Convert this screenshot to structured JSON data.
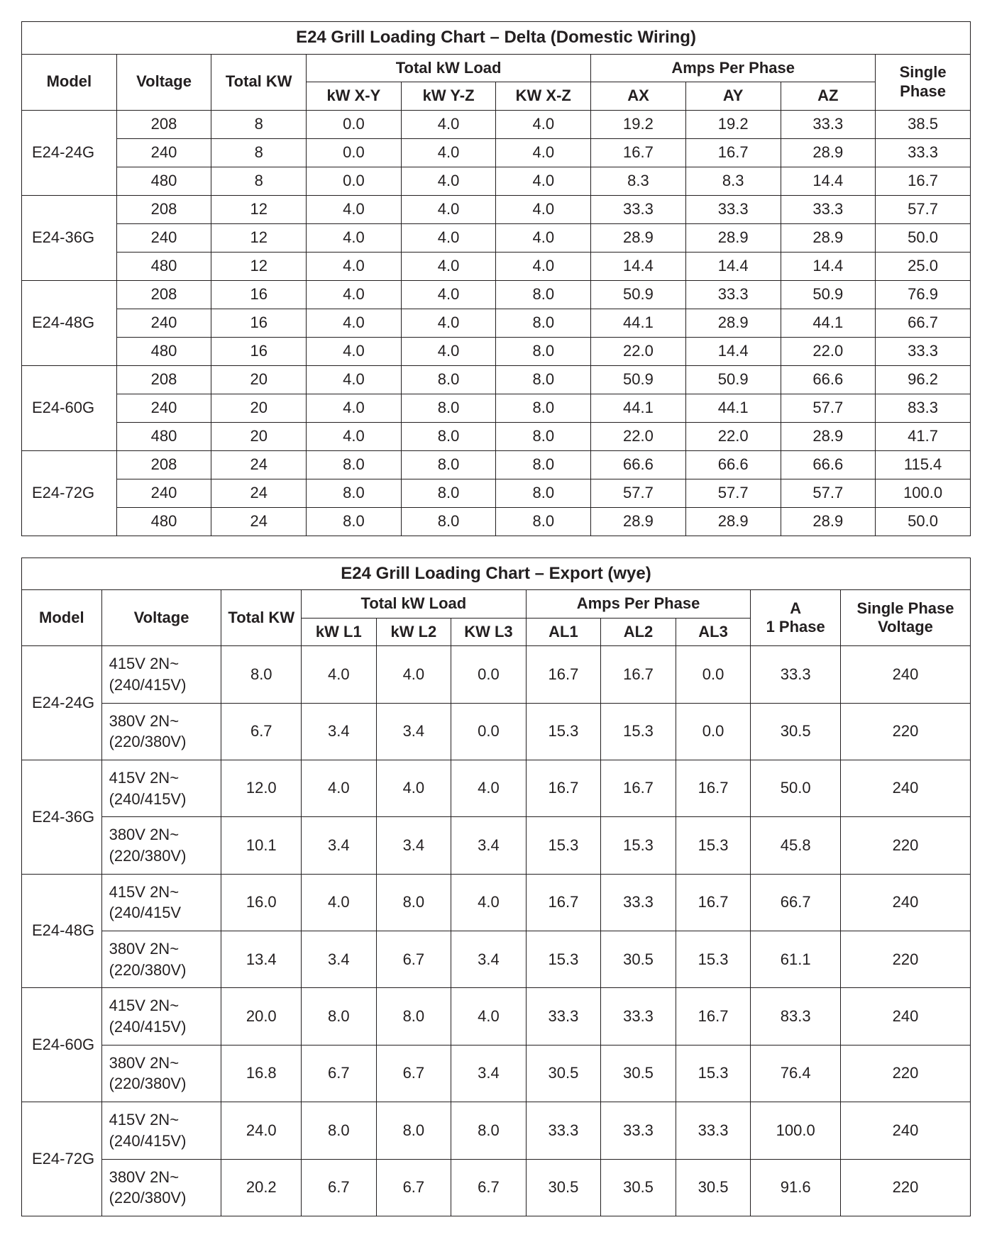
{
  "delta": {
    "title": "E24 Grill Loading Chart – Delta (Domestic Wiring)",
    "headers": {
      "model": "Model",
      "voltage": "Voltage",
      "totalKW": "Total KW",
      "totalKwLoad": "Total kW Load",
      "ampsPerPhase": "Amps Per Phase",
      "singlePhase": "Single Phase",
      "kwXY": "kW X-Y",
      "kwYZ": "kW Y-Z",
      "kwXZ": "KW X-Z",
      "ax": "AX",
      "ay": "AY",
      "az": "AZ"
    },
    "groups": [
      {
        "model": "E24-24G",
        "rows": [
          {
            "voltage": "208",
            "totalKW": "8",
            "kwXY": "0.0",
            "kwYZ": "4.0",
            "kwXZ": "4.0",
            "ax": "19.2",
            "ay": "19.2",
            "az": "33.3",
            "single": "38.5"
          },
          {
            "voltage": "240",
            "totalKW": "8",
            "kwXY": "0.0",
            "kwYZ": "4.0",
            "kwXZ": "4.0",
            "ax": "16.7",
            "ay": "16.7",
            "az": "28.9",
            "single": "33.3"
          },
          {
            "voltage": "480",
            "totalKW": "8",
            "kwXY": "0.0",
            "kwYZ": "4.0",
            "kwXZ": "4.0",
            "ax": "8.3",
            "ay": "8.3",
            "az": "14.4",
            "single": "16.7"
          }
        ]
      },
      {
        "model": "E24-36G",
        "rows": [
          {
            "voltage": "208",
            "totalKW": "12",
            "kwXY": "4.0",
            "kwYZ": "4.0",
            "kwXZ": "4.0",
            "ax": "33.3",
            "ay": "33.3",
            "az": "33.3",
            "single": "57.7"
          },
          {
            "voltage": "240",
            "totalKW": "12",
            "kwXY": "4.0",
            "kwYZ": "4.0",
            "kwXZ": "4.0",
            "ax": "28.9",
            "ay": "28.9",
            "az": "28.9",
            "single": "50.0"
          },
          {
            "voltage": "480",
            "totalKW": "12",
            "kwXY": "4.0",
            "kwYZ": "4.0",
            "kwXZ": "4.0",
            "ax": "14.4",
            "ay": "14.4",
            "az": "14.4",
            "single": "25.0"
          }
        ]
      },
      {
        "model": "E24-48G",
        "rows": [
          {
            "voltage": "208",
            "totalKW": "16",
            "kwXY": "4.0",
            "kwYZ": "4.0",
            "kwXZ": "8.0",
            "ax": "50.9",
            "ay": "33.3",
            "az": "50.9",
            "single": "76.9"
          },
          {
            "voltage": "240",
            "totalKW": "16",
            "kwXY": "4.0",
            "kwYZ": "4.0",
            "kwXZ": "8.0",
            "ax": "44.1",
            "ay": "28.9",
            "az": "44.1",
            "single": "66.7"
          },
          {
            "voltage": "480",
            "totalKW": "16",
            "kwXY": "4.0",
            "kwYZ": "4.0",
            "kwXZ": "8.0",
            "ax": "22.0",
            "ay": "14.4",
            "az": "22.0",
            "single": "33.3"
          }
        ]
      },
      {
        "model": "E24-60G",
        "rows": [
          {
            "voltage": "208",
            "totalKW": "20",
            "kwXY": "4.0",
            "kwYZ": "8.0",
            "kwXZ": "8.0",
            "ax": "50.9",
            "ay": "50.9",
            "az": "66.6",
            "single": "96.2"
          },
          {
            "voltage": "240",
            "totalKW": "20",
            "kwXY": "4.0",
            "kwYZ": "8.0",
            "kwXZ": "8.0",
            "ax": "44.1",
            "ay": "44.1",
            "az": "57.7",
            "single": "83.3"
          },
          {
            "voltage": "480",
            "totalKW": "20",
            "kwXY": "4.0",
            "kwYZ": "8.0",
            "kwXZ": "8.0",
            "ax": "22.0",
            "ay": "22.0",
            "az": "28.9",
            "single": "41.7"
          }
        ]
      },
      {
        "model": "E24-72G",
        "rows": [
          {
            "voltage": "208",
            "totalKW": "24",
            "kwXY": "8.0",
            "kwYZ": "8.0",
            "kwXZ": "8.0",
            "ax": "66.6",
            "ay": "66.6",
            "az": "66.6",
            "single": "115.4"
          },
          {
            "voltage": "240",
            "totalKW": "24",
            "kwXY": "8.0",
            "kwYZ": "8.0",
            "kwXZ": "8.0",
            "ax": "57.7",
            "ay": "57.7",
            "az": "57.7",
            "single": "100.0"
          },
          {
            "voltage": "480",
            "totalKW": "24",
            "kwXY": "8.0",
            "kwYZ": "8.0",
            "kwXZ": "8.0",
            "ax": "28.9",
            "ay": "28.9",
            "az": "28.9",
            "single": "50.0"
          }
        ]
      }
    ]
  },
  "export": {
    "title": "E24 Grill Loading Chart – Export (wye)",
    "headers": {
      "model": "Model",
      "voltage": "Voltage",
      "totalKW": "Total KW",
      "totalKwLoad": "Total kW Load",
      "ampsPerPhase": "Amps Per Phase",
      "a1Phase": "A\n1 Phase",
      "singlePhaseVoltage": "Single Phase\nVoltage",
      "kwL1": "kW L1",
      "kwL2": "kW L2",
      "kwL3": "KW L3",
      "al1": "AL1",
      "al2": "AL2",
      "al3": "AL3"
    },
    "groups": [
      {
        "model": "E24-24G",
        "rows": [
          {
            "voltage": "415V 2N~\n(240/415V)",
            "totalKW": "8.0",
            "kwL1": "4.0",
            "kwL2": "4.0",
            "kwL3": "0.0",
            "al1": "16.7",
            "al2": "16.7",
            "al3": "0.0",
            "a1p": "33.3",
            "spv": "240"
          },
          {
            "voltage": "380V 2N~\n(220/380V)",
            "totalKW": "6.7",
            "kwL1": "3.4",
            "kwL2": "3.4",
            "kwL3": "0.0",
            "al1": "15.3",
            "al2": "15.3",
            "al3": "0.0",
            "a1p": "30.5",
            "spv": "220"
          }
        ]
      },
      {
        "model": "E24-36G",
        "rows": [
          {
            "voltage": "415V 2N~\n(240/415V)",
            "totalKW": "12.0",
            "kwL1": "4.0",
            "kwL2": "4.0",
            "kwL3": "4.0",
            "al1": "16.7",
            "al2": "16.7",
            "al3": "16.7",
            "a1p": "50.0",
            "spv": "240"
          },
          {
            "voltage": "380V 2N~\n(220/380V)",
            "totalKW": "10.1",
            "kwL1": "3.4",
            "kwL2": "3.4",
            "kwL3": "3.4",
            "al1": "15.3",
            "al2": "15.3",
            "al3": "15.3",
            "a1p": "45.8",
            "spv": "220"
          }
        ]
      },
      {
        "model": "E24-48G",
        "rows": [
          {
            "voltage": "415V 2N~\n(240/415V",
            "totalKW": "16.0",
            "kwL1": "4.0",
            "kwL2": "8.0",
            "kwL3": "4.0",
            "al1": "16.7",
            "al2": "33.3",
            "al3": "16.7",
            "a1p": "66.7",
            "spv": "240"
          },
          {
            "voltage": "380V 2N~\n(220/380V)",
            "totalKW": "13.4",
            "kwL1": "3.4",
            "kwL2": "6.7",
            "kwL3": "3.4",
            "al1": "15.3",
            "al2": "30.5",
            "al3": "15.3",
            "a1p": "61.1",
            "spv": "220"
          }
        ]
      },
      {
        "model": "E24-60G",
        "rows": [
          {
            "voltage": "415V 2N~\n(240/415V)",
            "totalKW": "20.0",
            "kwL1": "8.0",
            "kwL2": "8.0",
            "kwL3": "4.0",
            "al1": "33.3",
            "al2": "33.3",
            "al3": "16.7",
            "a1p": "83.3",
            "spv": "240"
          },
          {
            "voltage": "380V 2N~\n(220/380V)",
            "totalKW": "16.8",
            "kwL1": "6.7",
            "kwL2": "6.7",
            "kwL3": "3.4",
            "al1": "30.5",
            "al2": "30.5",
            "al3": "15.3",
            "a1p": "76.4",
            "spv": "220"
          }
        ]
      },
      {
        "model": "E24-72G",
        "rows": [
          {
            "voltage": "415V 2N~\n(240/415V)",
            "totalKW": "24.0",
            "kwL1": "8.0",
            "kwL2": "8.0",
            "kwL3": "8.0",
            "al1": "33.3",
            "al2": "33.3",
            "al3": "33.3",
            "a1p": "100.0",
            "spv": "240"
          },
          {
            "voltage": "380V 2N~\n(220/380V)",
            "totalKW": "20.2",
            "kwL1": "6.7",
            "kwL2": "6.7",
            "kwL3": "6.7",
            "al1": "30.5",
            "al2": "30.5",
            "al3": "30.5",
            "a1p": "91.6",
            "spv": "220"
          }
        ]
      }
    ]
  }
}
